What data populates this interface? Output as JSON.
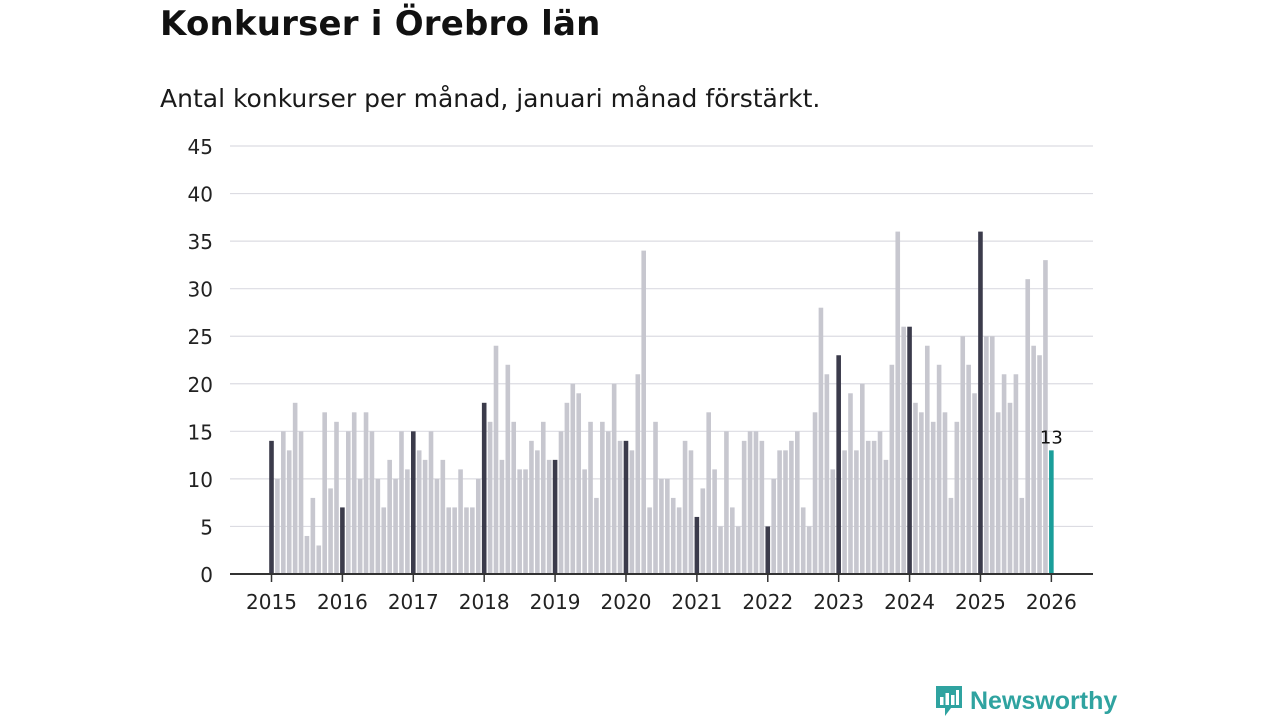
{
  "header": {
    "title": "Konkurser i Örebro län",
    "subtitle": "Antal konkurser per månad, januari månad förstärkt."
  },
  "brand": {
    "name": "Newsworthy",
    "icon": "newsworthy-logo-icon"
  },
  "colors": {
    "january": "#3b3b4b",
    "other": "#c7c7cf",
    "latest": "#1a9e9a",
    "grid": "#dcdce2",
    "axis": "#333333"
  },
  "chart_data": {
    "type": "bar",
    "title": "Konkurser i Örebro län",
    "subtitle": "Antal konkurser per månad, januari månad förstärkt.",
    "xlabel": "",
    "ylabel": "",
    "ylim": [
      0,
      45
    ],
    "yticks": [
      0,
      5,
      10,
      15,
      20,
      25,
      30,
      35,
      40,
      45
    ],
    "xtick_labels": [
      "2015",
      "2016",
      "2017",
      "2018",
      "2019",
      "2020",
      "2021",
      "2022",
      "2023",
      "2024",
      "2025",
      "2026"
    ],
    "grid": true,
    "start": "2015-01",
    "highlight": "January bars dark; latest month teal",
    "latest_label": "13",
    "values": [
      14,
      10,
      15,
      13,
      18,
      15,
      4,
      8,
      3,
      17,
      9,
      16,
      7,
      15,
      17,
      10,
      17,
      15,
      10,
      7,
      12,
      10,
      15,
      11,
      15,
      13,
      12,
      15,
      10,
      12,
      7,
      7,
      11,
      7,
      7,
      10,
      18,
      16,
      24,
      12,
      22,
      16,
      11,
      11,
      14,
      13,
      16,
      12,
      12,
      15,
      18,
      20,
      19,
      11,
      16,
      8,
      16,
      15,
      20,
      14,
      14,
      13,
      21,
      34,
      7,
      16,
      10,
      10,
      8,
      7,
      14,
      13,
      6,
      9,
      17,
      11,
      5,
      15,
      7,
      5,
      14,
      15,
      15,
      14,
      5,
      10,
      13,
      13,
      14,
      15,
      7,
      5,
      17,
      28,
      21,
      11,
      23,
      13,
      19,
      13,
      20,
      14,
      14,
      15,
      12,
      22,
      36,
      26,
      26,
      18,
      17,
      24,
      16,
      22,
      17,
      8,
      16,
      25,
      22,
      19,
      36,
      25,
      25,
      17,
      21,
      18,
      21,
      8,
      31,
      24,
      23,
      33,
      13
    ]
  }
}
